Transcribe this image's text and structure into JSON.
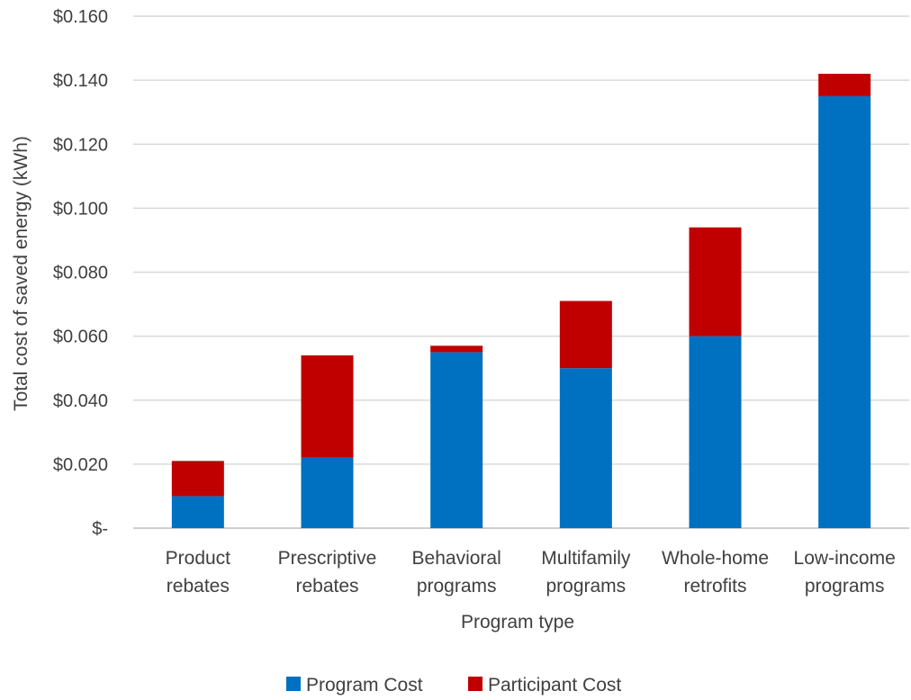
{
  "chart_data": {
    "type": "bar",
    "stacked": true,
    "categories": [
      [
        "Product",
        "rebates"
      ],
      [
        "Prescriptive",
        "rebates"
      ],
      [
        "Behavioral",
        "programs"
      ],
      [
        "Multifamily",
        "programs"
      ],
      [
        "Whole-home",
        "retrofits"
      ],
      [
        "Low-income",
        "programs"
      ]
    ],
    "series": [
      {
        "name": "Program Cost",
        "color": "#0070C0",
        "values": [
          0.01,
          0.022,
          0.055,
          0.05,
          0.06,
          0.135
        ]
      },
      {
        "name": "Participant Cost",
        "color": "#C00000",
        "values": [
          0.011,
          0.032,
          0.002,
          0.021,
          0.034,
          0.007
        ]
      }
    ],
    "xlabel": "Program type",
    "ylabel": "Total cost of saved energy (kWh)",
    "ylim": [
      0,
      0.16
    ],
    "yticks": [
      0,
      0.02,
      0.04,
      0.06,
      0.08,
      0.1,
      0.12,
      0.14,
      0.16
    ],
    "ytick_labels": [
      "$-",
      "$0.020",
      "$0.040",
      "$0.060",
      "$0.080",
      "$0.100",
      "$0.120",
      "$0.140",
      "$0.160"
    ],
    "grid": true,
    "legend": "bottom"
  }
}
